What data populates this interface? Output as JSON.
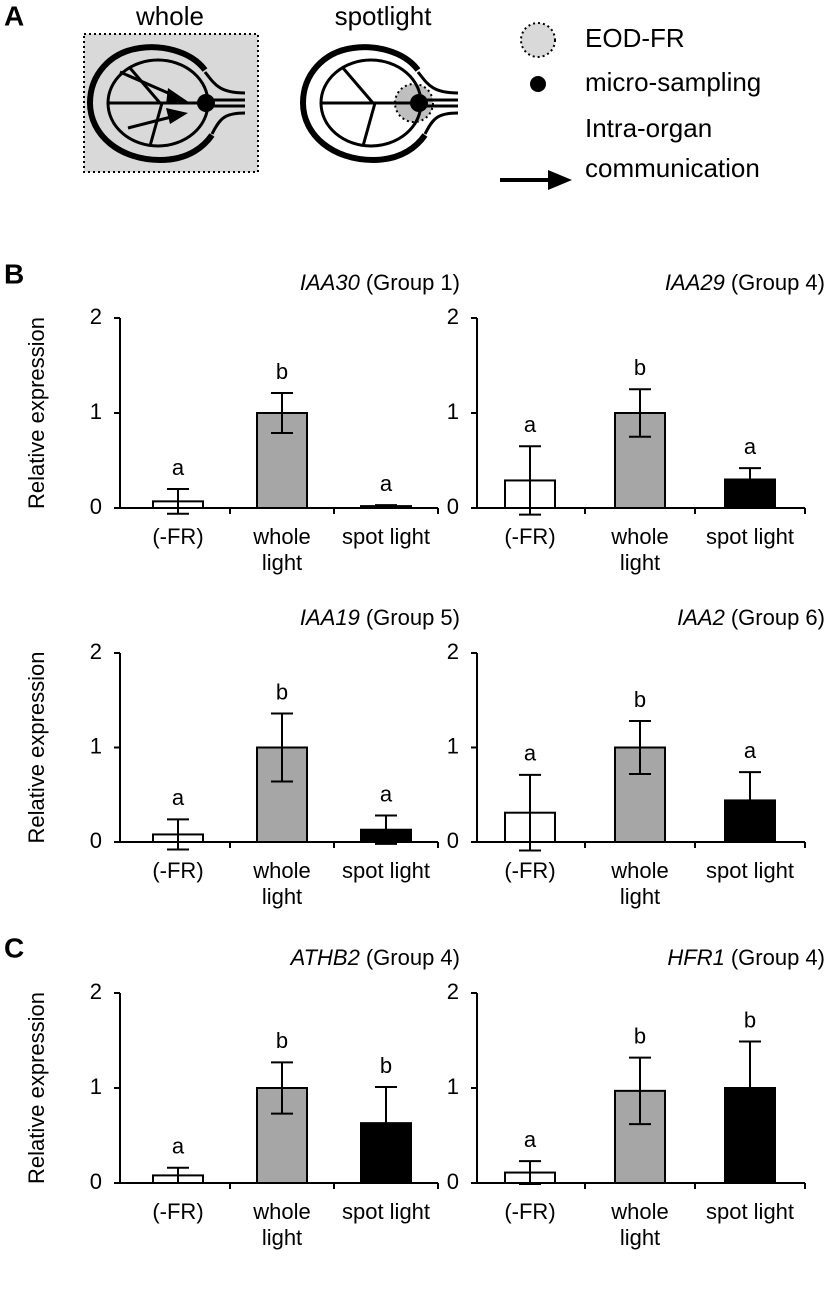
{
  "panel_labels": [
    "A",
    "B",
    "C"
  ],
  "diagram": {
    "whole": "whole",
    "spotlight": "spotlight",
    "legend": [
      "EOD-FR",
      "micro-sampling"
    ],
    "arrow_legend": [
      "Intra-organ",
      "communication"
    ]
  },
  "chart_data": [
    {
      "type": "bar",
      "title": {
        "gene": "IAA30",
        "group": "(Group 1)"
      },
      "ylabel": "Relative expression",
      "categories": [
        "(-FR)",
        [
          "whole",
          "light"
        ],
        "spot light"
      ],
      "values": [
        0.07,
        1.0,
        0.02
      ],
      "errors": [
        0.13,
        0.21,
        0.01
      ],
      "colors": [
        "#ffffff",
        "#a6a6a6",
        "#000000"
      ],
      "letters": [
        "a",
        "b",
        "a"
      ],
      "ylim": [
        0,
        2
      ],
      "yticks": [
        0,
        1,
        2
      ]
    },
    {
      "type": "bar",
      "title": {
        "gene": "IAA29",
        "group": "(Group 4)"
      },
      "categories": [
        "(-FR)",
        [
          "whole",
          "light"
        ],
        "spot light"
      ],
      "values": [
        0.29,
        1.0,
        0.3
      ],
      "errors": [
        0.36,
        0.25,
        0.12
      ],
      "colors": [
        "#ffffff",
        "#a6a6a6",
        "#000000"
      ],
      "letters": [
        "a",
        "b",
        "a"
      ],
      "ylim": [
        0,
        2
      ],
      "yticks": [
        0,
        1,
        2
      ]
    },
    {
      "type": "bar",
      "title": {
        "gene": "IAA19",
        "group": "(Group 5)"
      },
      "ylabel": "Relative expression",
      "categories": [
        "(-FR)",
        [
          "whole",
          "light"
        ],
        "spot light"
      ],
      "values": [
        0.08,
        1.0,
        0.13
      ],
      "errors": [
        0.16,
        0.36,
        0.15
      ],
      "colors": [
        "#ffffff",
        "#a6a6a6",
        "#000000"
      ],
      "letters": [
        "a",
        "b",
        "a"
      ],
      "ylim": [
        0,
        2
      ],
      "yticks": [
        0,
        1,
        2
      ]
    },
    {
      "type": "bar",
      "title": {
        "gene": "IAA2",
        "group": "(Group 6)"
      },
      "categories": [
        "(-FR)",
        [
          "whole",
          "light"
        ],
        "spot light"
      ],
      "values": [
        0.31,
        1.0,
        0.44
      ],
      "errors": [
        0.4,
        0.28,
        0.3
      ],
      "colors": [
        "#ffffff",
        "#a6a6a6",
        "#000000"
      ],
      "letters": [
        "a",
        "b",
        "a"
      ],
      "ylim": [
        0,
        2
      ],
      "yticks": [
        0,
        1,
        2
      ]
    },
    {
      "type": "bar",
      "title": {
        "gene": "ATHB2",
        "group": "(Group 4)"
      },
      "ylabel": "Relative expression",
      "categories": [
        "(-FR)",
        [
          "whole",
          "light"
        ],
        "spot light"
      ],
      "values": [
        0.08,
        1.0,
        0.63
      ],
      "errors": [
        0.08,
        0.27,
        0.38
      ],
      "colors": [
        "#ffffff",
        "#a6a6a6",
        "#000000"
      ],
      "letters": [
        "a",
        "b",
        "b"
      ],
      "ylim": [
        0,
        2
      ],
      "yticks": [
        0,
        1,
        2
      ]
    },
    {
      "type": "bar",
      "title": {
        "gene": "HFR1",
        "group": "(Group 4)"
      },
      "categories": [
        "(-FR)",
        [
          "whole",
          "light"
        ],
        "spot light"
      ],
      "values": [
        0.11,
        0.97,
        1.0
      ],
      "errors": [
        0.12,
        0.35,
        0.49
      ],
      "colors": [
        "#ffffff",
        "#a6a6a6",
        "#000000"
      ],
      "letters": [
        "a",
        "b",
        "b"
      ],
      "ylim": [
        0,
        2
      ],
      "yticks": [
        0,
        1,
        2
      ]
    }
  ]
}
